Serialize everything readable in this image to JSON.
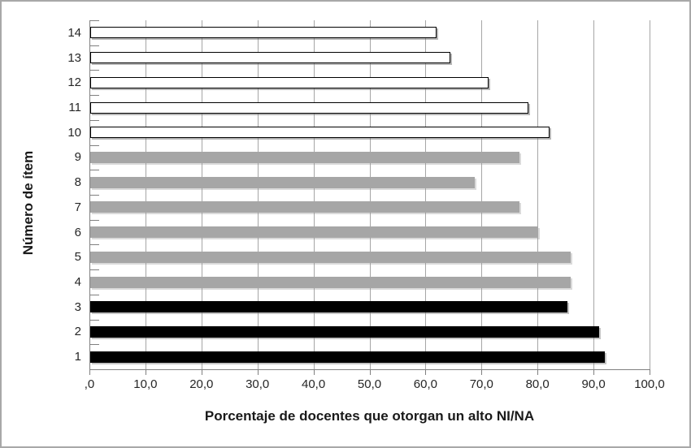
{
  "chart_data": {
    "type": "bar",
    "orientation": "horizontal",
    "title": "",
    "xlabel": "Porcentaje de docentes que otorgan un alto NI/NA",
    "ylabel": "Número de ítem",
    "xlim": [
      0,
      100
    ],
    "x_tick_values": [
      0,
      10,
      20,
      30,
      40,
      50,
      60,
      70,
      80,
      90,
      100
    ],
    "x_tick_labels": [
      ",0",
      "10,0",
      "20,0",
      "30,0",
      "40,0",
      "50,0",
      "60,0",
      "70,0",
      "80,0",
      "90,0",
      "100,0"
    ],
    "grid": "vertical-major",
    "legend": "none",
    "categories": [
      "1",
      "2",
      "3",
      "4",
      "5",
      "6",
      "7",
      "8",
      "9",
      "10",
      "11",
      "12",
      "13",
      "14"
    ],
    "values": [
      91.8,
      90.9,
      85.2,
      85.8,
      85.8,
      80.0,
      76.7,
      68.7,
      76.7,
      82.0,
      78.2,
      71.1,
      64.3,
      61.8
    ],
    "items": [
      {
        "label": "1",
        "value": 91.8,
        "group": "black"
      },
      {
        "label": "2",
        "value": 90.9,
        "group": "black"
      },
      {
        "label": "3",
        "value": 85.2,
        "group": "black"
      },
      {
        "label": "4",
        "value": 85.8,
        "group": "gray"
      },
      {
        "label": "5",
        "value": 85.8,
        "group": "gray"
      },
      {
        "label": "6",
        "value": 80.0,
        "group": "gray"
      },
      {
        "label": "7",
        "value": 76.7,
        "group": "gray"
      },
      {
        "label": "8",
        "value": 68.7,
        "group": "gray"
      },
      {
        "label": "9",
        "value": 76.7,
        "group": "gray"
      },
      {
        "label": "10",
        "value": 82.0,
        "group": "white"
      },
      {
        "label": "11",
        "value": 78.2,
        "group": "white"
      },
      {
        "label": "12",
        "value": 71.1,
        "group": "white"
      },
      {
        "label": "13",
        "value": 64.3,
        "group": "white"
      },
      {
        "label": "14",
        "value": 61.8,
        "group": "white"
      }
    ],
    "groups": {
      "black": {
        "fill": "#000000",
        "border": "none"
      },
      "gray": {
        "fill": "#a6a6a6",
        "border": "none"
      },
      "white": {
        "fill": "#ffffff",
        "border": "#000000"
      }
    }
  },
  "colors": {
    "background": "#ffffff",
    "chart_border": "#a8a8a8",
    "gridline": "#a6a6a6",
    "axis_line": "#808080",
    "text": "#262626"
  }
}
